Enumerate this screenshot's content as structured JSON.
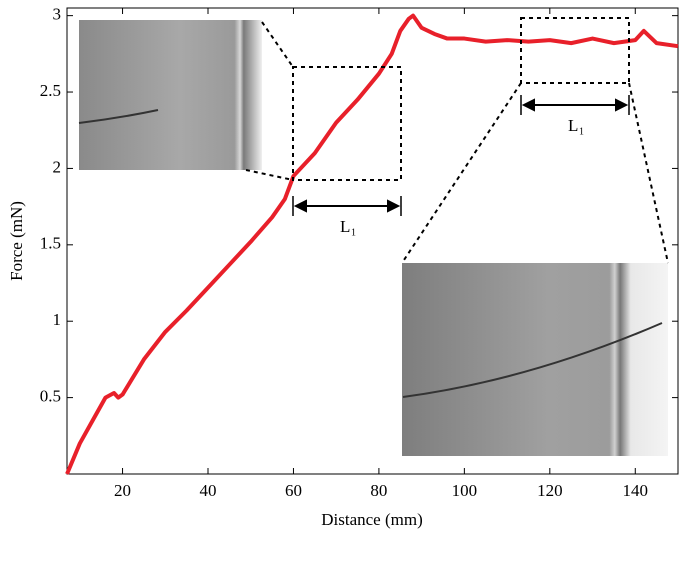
{
  "chart_data": {
    "type": "line",
    "x_label": "Distance (mm)",
    "y_label": "Force (mN)",
    "x": [
      7,
      10,
      13,
      16,
      18,
      19,
      20,
      25,
      30,
      35,
      40,
      45,
      50,
      55,
      58,
      60,
      65,
      70,
      75,
      80,
      83,
      85,
      87,
      88,
      90,
      93,
      96,
      100,
      105,
      110,
      115,
      120,
      125,
      130,
      135,
      140,
      142,
      145,
      150
    ],
    "series": [
      {
        "color": "#e8202a",
        "values": [
          0,
          0.2,
          0.35,
          0.5,
          0.53,
          0.5,
          0.52,
          0.75,
          0.93,
          1.07,
          1.22,
          1.37,
          1.52,
          1.68,
          1.8,
          1.95,
          2.1,
          2.3,
          2.45,
          2.62,
          2.75,
          2.9,
          2.98,
          3.0,
          2.92,
          2.88,
          2.85,
          2.85,
          2.83,
          2.84,
          2.83,
          2.84,
          2.82,
          2.85,
          2.82,
          2.84,
          2.9,
          2.82,
          2.8
        ]
      }
    ],
    "xlim": [
      7,
      150
    ],
    "xticks": [
      20,
      40,
      60,
      80,
      100,
      120,
      140
    ],
    "ylim": [
      0,
      3.05
    ],
    "yticks": [
      0.5,
      1,
      1.5,
      2,
      2.5,
      3
    ],
    "grid": false,
    "annotations": [
      {
        "text": "L",
        "sub": "1"
      },
      {
        "text": "L",
        "sub": "1"
      }
    ]
  }
}
